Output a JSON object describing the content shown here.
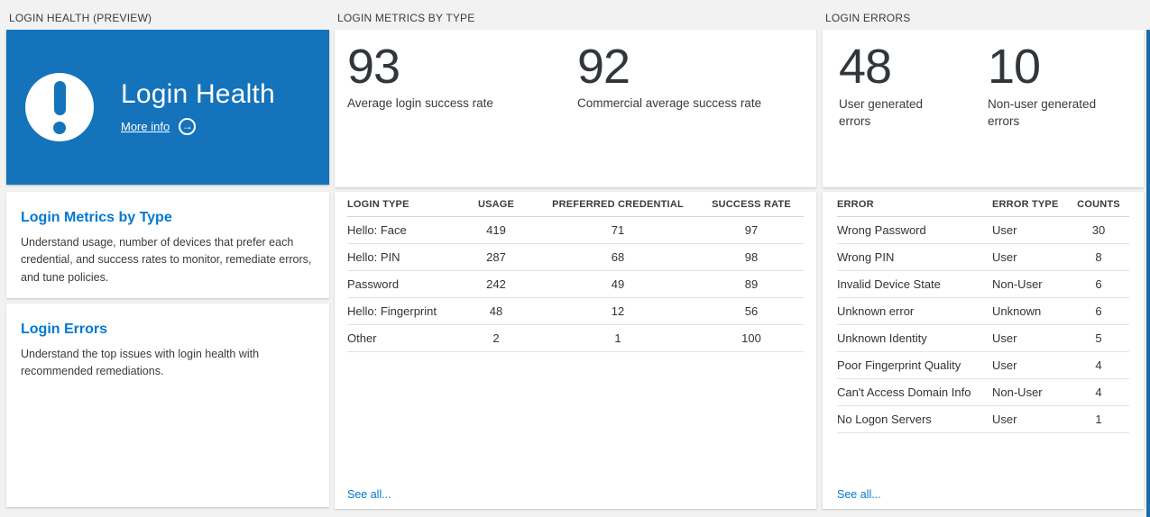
{
  "colors": {
    "page_bg": "#f2f2f2",
    "tile_blue": "#1473bb",
    "accent_blue": "#0078d4",
    "text_dark": "#333333",
    "edge_strip_blue": "#1b6ca8"
  },
  "icons": {
    "alert": "exclamation-circle",
    "arrow_right": "→"
  },
  "login_health_panel": {
    "header": "LOGIN HEALTH (PREVIEW)",
    "tile": {
      "title": "Login Health",
      "more_info_label": "More info"
    },
    "sections": [
      {
        "title": "Login Metrics by Type",
        "description": "Understand usage, number of devices that prefer each credential, and success rates to monitor, remediate errors, and tune policies."
      },
      {
        "title": "Login Errors",
        "description": "Understand the top issues with login health with recommended remediations."
      }
    ]
  },
  "login_metrics_panel": {
    "header": "LOGIN METRICS BY TYPE",
    "stats": [
      {
        "value": "93",
        "label": "Average login success rate"
      },
      {
        "value": "92",
        "label": "Commercial average success rate"
      }
    ],
    "table": {
      "columns": [
        "LOGIN TYPE",
        "USAGE",
        "PREFERRED CREDENTIAL",
        "SUCCESS RATE"
      ],
      "rows": [
        [
          "Hello: Face",
          "419",
          "71",
          "97"
        ],
        [
          "Hello: PIN",
          "287",
          "68",
          "98"
        ],
        [
          "Password",
          "242",
          "49",
          "89"
        ],
        [
          "Hello: Fingerprint",
          "48",
          "12",
          "56"
        ],
        [
          "Other",
          "2",
          "1",
          "100"
        ]
      ]
    },
    "see_all_label": "See all..."
  },
  "login_errors_panel": {
    "header": "LOGIN ERRORS",
    "stats": [
      {
        "value": "48",
        "label": "User generated errors"
      },
      {
        "value": "10",
        "label": "Non-user generated errors"
      }
    ],
    "table": {
      "columns": [
        "ERROR",
        "ERROR TYPE",
        "COUNTS"
      ],
      "rows": [
        [
          "Wrong Password",
          "User",
          "30"
        ],
        [
          "Wrong PIN",
          "User",
          "8"
        ],
        [
          "Invalid Device State",
          "Non-User",
          "6"
        ],
        [
          "Unknown error",
          "Unknown",
          "6"
        ],
        [
          "Unknown Identity",
          "User",
          "5"
        ],
        [
          "Poor Fingerprint Quality",
          "User",
          "4"
        ],
        [
          "Can't Access Domain Info",
          "Non-User",
          "4"
        ],
        [
          "No Logon Servers",
          "User",
          "1"
        ]
      ]
    },
    "see_all_label": "See all..."
  }
}
